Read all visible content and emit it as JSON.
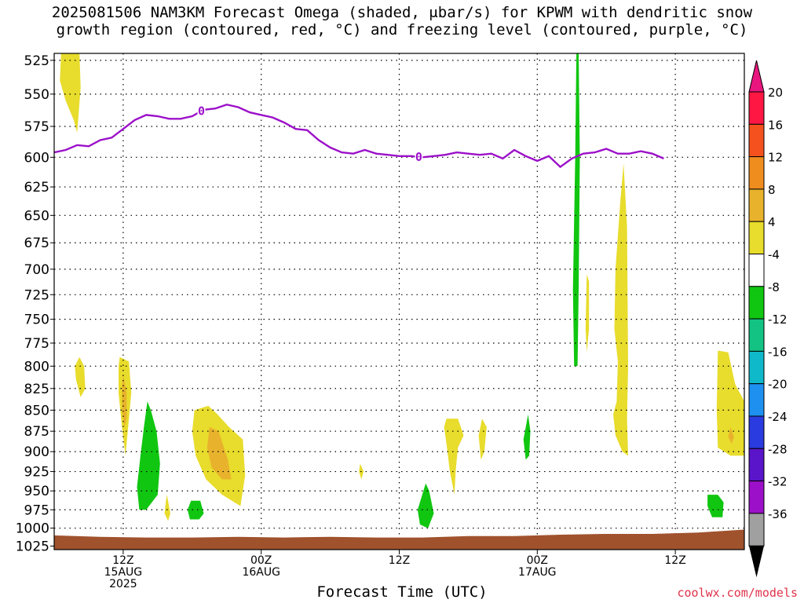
{
  "title_line1": "2025081506 NAM3KM Forecast Omega (shaded, μbar/s) for KPWM with dendritic snow",
  "title_line2": "growth region (contoured, red, °C) and freezing level (contoured, purple, °C)",
  "credit": "coolwx.com/models",
  "chart_data": {
    "type": "area",
    "xlabel": "Forecast Time (UTC)",
    "x_ticks": [
      {
        "label": [
          "12Z",
          "15AUG",
          "2025"
        ],
        "hour": 12
      },
      {
        "label": [
          "00Z",
          "16AUG"
        ],
        "hour": 24
      },
      {
        "label": [
          "12Z"
        ],
        "hour": 36
      },
      {
        "label": [
          "00Z",
          "17AUG"
        ],
        "hour": 48
      },
      {
        "label": [
          "12Z"
        ],
        "hour": 60
      }
    ],
    "xlim": [
      6,
      66
    ],
    "y_levels": [
      525,
      550,
      575,
      600,
      625,
      650,
      675,
      700,
      725,
      750,
      775,
      800,
      825,
      850,
      875,
      900,
      925,
      950,
      975,
      1000,
      1025
    ],
    "ylim": [
      520,
      1030
    ],
    "y_scale": "log",
    "grid": true,
    "colorbar": {
      "labels": [
        "20",
        "16",
        "12",
        "8",
        "4",
        "-4",
        "-8",
        "-12",
        "-16",
        "-20",
        "-24",
        "-28",
        "-32",
        "-36"
      ],
      "colors": [
        "#ff1744",
        "#f4511e",
        "#ef8d1f",
        "#e8b22c",
        "#e8dc2c",
        "#ffffff",
        "#10c610",
        "#13c383",
        "#10b9c9",
        "#1e90f0",
        "#2a3bdf",
        "#5a14c9",
        "#9c10c9",
        "#a0a0a0"
      ],
      "top_arrow_color": "#e8167e",
      "bottom_arrow_color": "#000000"
    },
    "freezing_level": {
      "color": "#9c10c9",
      "label": "0",
      "points": [
        [
          6,
          596
        ],
        [
          7,
          594
        ],
        [
          8,
          590
        ],
        [
          9,
          591
        ],
        [
          10,
          586
        ],
        [
          11,
          584
        ],
        [
          12,
          577
        ],
        [
          13,
          570
        ],
        [
          14,
          566
        ],
        [
          15,
          567
        ],
        [
          16,
          569
        ],
        [
          17,
          569
        ],
        [
          18,
          567
        ],
        [
          19,
          562
        ],
        [
          20,
          561
        ],
        [
          21,
          558
        ],
        [
          22,
          560
        ],
        [
          23,
          564
        ],
        [
          24,
          566
        ],
        [
          25,
          568
        ],
        [
          26,
          572
        ],
        [
          27,
          577
        ],
        [
          28,
          578
        ],
        [
          29,
          586
        ],
        [
          30,
          592
        ],
        [
          31,
          596
        ],
        [
          32,
          597
        ],
        [
          33,
          594
        ],
        [
          34,
          597
        ],
        [
          35,
          598
        ],
        [
          36,
          599
        ],
        [
          37,
          599
        ],
        [
          38,
          600
        ],
        [
          39,
          599
        ],
        [
          40,
          598
        ],
        [
          41,
          596
        ],
        [
          42,
          597
        ],
        [
          43,
          598
        ],
        [
          44,
          597
        ],
        [
          45,
          601
        ],
        [
          46,
          594
        ],
        [
          47,
          599
        ],
        [
          48,
          603
        ],
        [
          49,
          599
        ],
        [
          50,
          608
        ],
        [
          51,
          601
        ],
        [
          52,
          597
        ],
        [
          53,
          596
        ],
        [
          54,
          593
        ],
        [
          55,
          597
        ],
        [
          56,
          597
        ],
        [
          57,
          595
        ],
        [
          58,
          597
        ],
        [
          59,
          601
        ]
      ],
      "label_hours": [
        18.8,
        37.7
      ]
    },
    "omega_regions": [
      {
        "level": "4",
        "color": "#e8dc2c",
        "pts": [
          [
            6.6,
            520
          ],
          [
            8.2,
            520
          ],
          [
            8.3,
            545
          ],
          [
            8.0,
            580
          ],
          [
            7.7,
            570
          ],
          [
            7.0,
            555
          ],
          [
            6.5,
            540
          ]
        ]
      },
      {
        "level": "4",
        "color": "#e8dc2c",
        "pts": [
          [
            8.2,
            790
          ],
          [
            8.6,
            800
          ],
          [
            8.7,
            825
          ],
          [
            8.3,
            835
          ],
          [
            7.9,
            815
          ],
          [
            7.8,
            800
          ]
        ]
      },
      {
        "level": "4",
        "color": "#e8dc2c",
        "pts": [
          [
            11.7,
            790
          ],
          [
            12.5,
            795
          ],
          [
            12.7,
            830
          ],
          [
            12.5,
            860
          ],
          [
            12.2,
            905
          ],
          [
            11.9,
            870
          ],
          [
            11.6,
            830
          ],
          [
            11.6,
            800
          ]
        ]
      },
      {
        "level": "8",
        "color": "#e8b22c",
        "pts": [
          [
            12.0,
            810
          ],
          [
            12.3,
            830
          ],
          [
            12.3,
            860
          ],
          [
            12.1,
            870
          ],
          [
            11.9,
            850
          ],
          [
            11.9,
            825
          ]
        ]
      },
      {
        "level": "4",
        "color": "#e8dc2c",
        "pts": [
          [
            18.2,
            850
          ],
          [
            19.4,
            845
          ],
          [
            20.2,
            855
          ],
          [
            21.2,
            870
          ],
          [
            22.4,
            885
          ],
          [
            22.6,
            930
          ],
          [
            22.2,
            970
          ],
          [
            20.6,
            955
          ],
          [
            19.2,
            935
          ],
          [
            18.3,
            905
          ],
          [
            18.0,
            875
          ]
        ]
      },
      {
        "level": "8",
        "color": "#e8b22c",
        "pts": [
          [
            19.5,
            870
          ],
          [
            20.3,
            875
          ],
          [
            21.1,
            910
          ],
          [
            21.4,
            935
          ],
          [
            20.6,
            935
          ],
          [
            19.7,
            920
          ],
          [
            19.3,
            895
          ]
        ]
      },
      {
        "level": "-4",
        "color": "#10c610",
        "pts": [
          [
            14.1,
            840
          ],
          [
            14.4,
            850
          ],
          [
            14.9,
            875
          ],
          [
            15.2,
            915
          ],
          [
            15.0,
            955
          ],
          [
            14.0,
            975
          ],
          [
            13.4,
            975
          ],
          [
            13.2,
            945
          ],
          [
            13.5,
            905
          ],
          [
            13.8,
            870
          ]
        ]
      },
      {
        "level": "4",
        "color": "#e8dc2c",
        "pts": [
          [
            15.8,
            955
          ],
          [
            16.1,
            980
          ],
          [
            15.9,
            990
          ],
          [
            15.6,
            980
          ],
          [
            15.7,
            965
          ]
        ]
      },
      {
        "level": "-4",
        "color": "#10c610",
        "pts": [
          [
            17.9,
            963
          ],
          [
            18.7,
            963
          ],
          [
            19.0,
            980
          ],
          [
            18.6,
            988
          ],
          [
            17.8,
            988
          ],
          [
            17.6,
            975
          ]
        ]
      },
      {
        "level": "4",
        "color": "#e8dc2c",
        "pts": [
          [
            32.6,
            915
          ],
          [
            32.9,
            925
          ],
          [
            32.7,
            935
          ],
          [
            32.5,
            925
          ]
        ]
      },
      {
        "level": "-4",
        "color": "#10c610",
        "pts": [
          [
            38.3,
            940
          ],
          [
            38.6,
            950
          ],
          [
            39.0,
            980
          ],
          [
            38.5,
            1000
          ],
          [
            37.8,
            995
          ],
          [
            37.6,
            975
          ],
          [
            38.0,
            955
          ]
        ]
      },
      {
        "level": "4",
        "color": "#e8dc2c",
        "pts": [
          [
            40.1,
            860
          ],
          [
            41.1,
            860
          ],
          [
            41.6,
            880
          ],
          [
            41.1,
            895
          ],
          [
            40.9,
            925
          ],
          [
            40.8,
            955
          ],
          [
            40.4,
            925
          ],
          [
            40.1,
            890
          ],
          [
            39.9,
            870
          ]
        ]
      },
      {
        "level": "4",
        "color": "#e8dc2c",
        "pts": [
          [
            43.2,
            860
          ],
          [
            43.6,
            870
          ],
          [
            43.4,
            900
          ],
          [
            43.1,
            910
          ],
          [
            42.9,
            880
          ]
        ]
      },
      {
        "level": "-4",
        "color": "#10c610",
        "pts": [
          [
            47.2,
            855
          ],
          [
            47.4,
            875
          ],
          [
            47.3,
            905
          ],
          [
            47.0,
            910
          ],
          [
            46.8,
            885
          ]
        ]
      },
      {
        "level": "-4",
        "color": "#10c610",
        "pts": [
          [
            51.4,
            520
          ],
          [
            51.6,
            520
          ],
          [
            51.7,
            600
          ],
          [
            51.6,
            720
          ],
          [
            51.5,
            800
          ],
          [
            51.2,
            800
          ],
          [
            51.1,
            720
          ],
          [
            51.3,
            600
          ]
        ]
      },
      {
        "level": "4",
        "color": "#e8dc2c",
        "pts": [
          [
            52.3,
            705
          ],
          [
            52.5,
            712
          ],
          [
            52.5,
            760
          ],
          [
            52.3,
            785
          ],
          [
            52.2,
            760
          ]
        ]
      },
      {
        "level": "4",
        "color": "#e8dc2c",
        "pts": [
          [
            55.5,
            605
          ],
          [
            55.8,
            660
          ],
          [
            55.9,
            800
          ],
          [
            55.8,
            860
          ],
          [
            55.9,
            905
          ],
          [
            55.4,
            900
          ],
          [
            54.8,
            880
          ],
          [
            54.6,
            855
          ],
          [
            54.9,
            840
          ],
          [
            55.0,
            795
          ],
          [
            54.7,
            760
          ],
          [
            54.8,
            700
          ],
          [
            55.2,
            640
          ]
        ]
      },
      {
        "level": "4",
        "color": "#e8dc2c",
        "pts": [
          [
            63.7,
            783
          ],
          [
            64.6,
            785
          ],
          [
            65.2,
            820
          ],
          [
            66,
            840
          ],
          [
            66,
            905
          ],
          [
            64.8,
            905
          ],
          [
            63.7,
            895
          ],
          [
            63.6,
            850
          ]
        ]
      },
      {
        "level": "8",
        "color": "#e8b22c",
        "pts": [
          [
            64.8,
            870
          ],
          [
            65.1,
            882
          ],
          [
            64.9,
            890
          ],
          [
            64.6,
            882
          ]
        ]
      },
      {
        "level": "-4",
        "color": "#10c610",
        "pts": [
          [
            62.8,
            955
          ],
          [
            63.7,
            955
          ],
          [
            64.2,
            965
          ],
          [
            64.1,
            985
          ],
          [
            63.2,
            985
          ],
          [
            62.8,
            970
          ]
        ]
      }
    ],
    "terrain": {
      "color": "#a0522d",
      "surface_pressure": [
        [
          6,
          1010
        ],
        [
          10,
          1012
        ],
        [
          14,
          1013
        ],
        [
          18,
          1013
        ],
        [
          22,
          1012
        ],
        [
          26,
          1013
        ],
        [
          30,
          1012
        ],
        [
          34,
          1013
        ],
        [
          38,
          1013
        ],
        [
          42,
          1011
        ],
        [
          46,
          1011
        ],
        [
          50,
          1009
        ],
        [
          54,
          1008
        ],
        [
          58,
          1008
        ],
        [
          62,
          1006
        ],
        [
          64,
          1004
        ],
        [
          66,
          1002
        ]
      ]
    }
  }
}
